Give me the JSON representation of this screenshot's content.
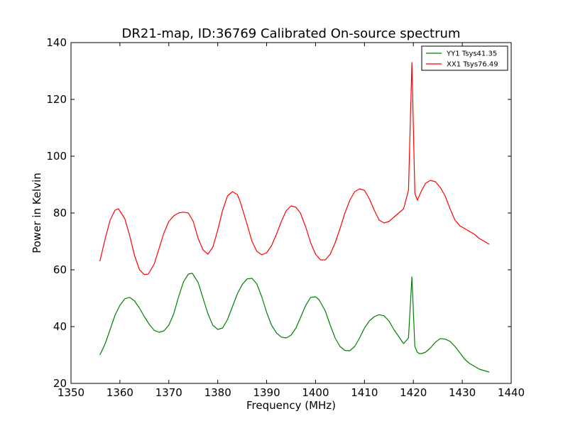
{
  "chart_data": {
    "type": "line",
    "title": "DR21-map, ID:36769 Calibrated On-source spectrum",
    "xlabel": "Frequency (MHz)",
    "ylabel": "Power in Kelvin",
    "xlim": [
      1350,
      1440
    ],
    "ylim": [
      20,
      140
    ],
    "xticks": [
      1350,
      1360,
      1370,
      1380,
      1390,
      1400,
      1410,
      1420,
      1430,
      1440
    ],
    "yticks": [
      20,
      40,
      60,
      80,
      100,
      120,
      140
    ],
    "grid": false,
    "legend_position": "top-right",
    "series": [
      {
        "name": "YY1 Tsys41.35",
        "color": "#008000",
        "x": [
          1355.9,
          1357.0,
          1358.0,
          1359.0,
          1360.0,
          1361.0,
          1362.0,
          1363.0,
          1364.0,
          1365.0,
          1366.0,
          1367.0,
          1368.0,
          1369.0,
          1370.0,
          1371.0,
          1372.0,
          1373.0,
          1374.0,
          1374.8,
          1376.0,
          1377.0,
          1378.0,
          1379.0,
          1380.0,
          1381.0,
          1382.0,
          1383.0,
          1384.0,
          1385.0,
          1386.0,
          1387.0,
          1388.0,
          1389.0,
          1390.0,
          1391.0,
          1392.0,
          1393.0,
          1394.0,
          1395.0,
          1396.0,
          1397.0,
          1398.0,
          1399.0,
          1400.0,
          1400.7,
          1402.0,
          1403.0,
          1404.0,
          1405.0,
          1406.0,
          1407.0,
          1408.0,
          1409.0,
          1410.0,
          1411.0,
          1412.0,
          1413.0,
          1414.0,
          1415.0,
          1416.0,
          1417.0,
          1418.0,
          1419.0,
          1419.7,
          1420.3,
          1420.8,
          1421.2,
          1421.7,
          1422.5,
          1423.5,
          1424.5,
          1425.5,
          1426.5,
          1427.5,
          1428.5,
          1429.5,
          1430.5,
          1431.5,
          1432.5,
          1433.5,
          1434.5,
          1435.5
        ],
        "values": [
          30.0,
          34.0,
          39.0,
          44.0,
          47.5,
          49.8,
          50.3,
          49.0,
          46.5,
          43.5,
          40.8,
          38.7,
          38.0,
          38.5,
          40.5,
          44.5,
          50.5,
          55.8,
          58.5,
          58.8,
          55.5,
          50.0,
          44.5,
          40.5,
          39.0,
          39.5,
          42.5,
          47.0,
          51.5,
          54.8,
          56.8,
          57.0,
          55.0,
          50.5,
          45.0,
          40.5,
          37.8,
          36.3,
          36.0,
          37.0,
          39.5,
          43.5,
          47.5,
          50.3,
          50.5,
          49.5,
          45.5,
          40.5,
          36.0,
          33.0,
          31.6,
          31.5,
          33.0,
          36.0,
          39.5,
          42.0,
          43.5,
          44.2,
          43.8,
          42.0,
          39.0,
          36.5,
          34.0,
          36.0,
          57.5,
          33.0,
          31.0,
          30.5,
          30.5,
          31.0,
          32.5,
          34.5,
          35.8,
          35.6,
          34.8,
          33.0,
          30.8,
          28.5,
          27.0,
          26.0,
          25.0,
          24.5,
          24.0
        ]
      },
      {
        "name": "XX1 Tsys76.49",
        "color": "#ff0000",
        "x": [
          1355.9,
          1357.0,
          1358.0,
          1359.0,
          1359.7,
          1361.0,
          1362.0,
          1363.0,
          1364.0,
          1365.0,
          1365.8,
          1367.0,
          1368.0,
          1369.0,
          1370.0,
          1371.0,
          1372.0,
          1373.0,
          1374.0,
          1375.0,
          1376.0,
          1377.0,
          1378.0,
          1379.0,
          1380.0,
          1381.0,
          1382.0,
          1383.0,
          1384.0,
          1384.6,
          1386.0,
          1387.0,
          1388.0,
          1389.0,
          1390.0,
          1391.0,
          1392.0,
          1393.0,
          1394.0,
          1395.0,
          1396.0,
          1396.9,
          1398.0,
          1399.0,
          1400.0,
          1401.0,
          1402.0,
          1403.0,
          1404.0,
          1405.0,
          1406.0,
          1407.0,
          1408.0,
          1409.0,
          1410.0,
          1411.0,
          1412.0,
          1413.0,
          1414.0,
          1415.0,
          1416.0,
          1417.0,
          1418.0,
          1419.0,
          1419.7,
          1420.3,
          1420.8,
          1421.2,
          1421.7,
          1422.5,
          1423.5,
          1424.5,
          1425.5,
          1426.5,
          1427.5,
          1428.5,
          1429.5,
          1430.5,
          1431.5,
          1432.5,
          1433.5,
          1434.5,
          1435.5
        ],
        "values": [
          63.0,
          71.0,
          77.5,
          81.0,
          81.5,
          78.0,
          72.0,
          65.0,
          60.0,
          58.3,
          58.5,
          62.0,
          67.5,
          73.0,
          77.0,
          79.0,
          80.0,
          80.3,
          80.0,
          77.0,
          71.0,
          67.0,
          65.5,
          68.0,
          74.0,
          81.0,
          86.0,
          87.5,
          86.5,
          84.0,
          76.0,
          70.0,
          66.5,
          65.3,
          66.0,
          68.5,
          72.5,
          77.0,
          80.8,
          82.5,
          82.0,
          80.0,
          75.0,
          69.5,
          65.5,
          63.5,
          63.5,
          65.5,
          69.5,
          74.5,
          80.0,
          84.5,
          87.5,
          88.5,
          88.0,
          85.0,
          81.0,
          77.5,
          76.5,
          77.0,
          78.5,
          80.0,
          81.5,
          88.0,
          133.0,
          87.0,
          84.5,
          86.0,
          88.0,
          90.5,
          91.5,
          91.0,
          89.0,
          86.0,
          81.5,
          77.5,
          75.5,
          74.5,
          73.5,
          72.5,
          71.0,
          70.0,
          69.0
        ]
      }
    ]
  }
}
